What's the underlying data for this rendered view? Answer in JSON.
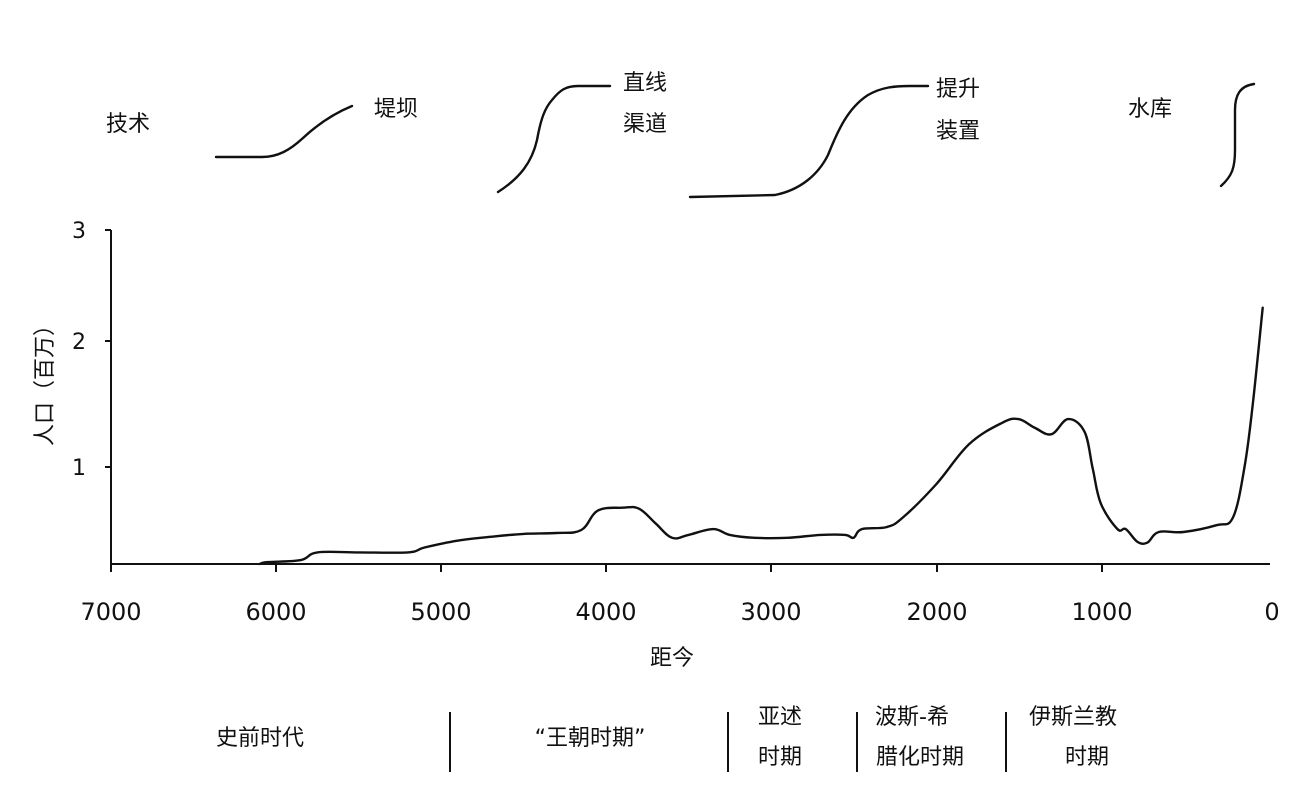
{
  "chart_data": {
    "type": "line",
    "xlabel": "距今",
    "ylabel": "人口（百万）",
    "xlim": [
      7000,
      0
    ],
    "ylim": [
      0,
      3
    ],
    "x_ticks": [
      "7000",
      "6000",
      "5000",
      "4000",
      "3000",
      "2000",
      "1000",
      "0"
    ],
    "y_ticks": [
      "1",
      "2",
      "3"
    ],
    "series": [
      {
        "x": [
          6100,
          6050,
          5850,
          5750,
          5500,
          5200,
          5100,
          4900,
          4700,
          4500,
          4300,
          4150,
          4050,
          3900,
          3800,
          3700,
          3600,
          3500,
          3350,
          3250,
          3100,
          2900,
          2700,
          2550,
          2500,
          2450,
          2300,
          2200,
          2000,
          1800,
          1600,
          1500,
          1400,
          1300,
          1200,
          1100,
          1050,
          1000,
          900,
          850,
          780,
          720,
          650,
          500,
          300,
          200,
          130,
          80,
          20
        ],
        "y": [
          0.0,
          0.02,
          0.04,
          0.12,
          0.12,
          0.12,
          0.17,
          0.24,
          0.28,
          0.31,
          0.32,
          0.35,
          0.55,
          0.58,
          0.57,
          0.42,
          0.27,
          0.3,
          0.36,
          0.3,
          0.27,
          0.27,
          0.3,
          0.3,
          0.27,
          0.36,
          0.38,
          0.48,
          0.82,
          1.18,
          1.35,
          1.38,
          1.31,
          1.26,
          1.38,
          1.28,
          0.98,
          0.62,
          0.36,
          0.36,
          0.23,
          0.22,
          0.33,
          0.33,
          0.4,
          0.48,
          1.0,
          1.5,
          2.3
        ]
      }
    ],
    "technology": {
      "row_label": "技术",
      "items": [
        {
          "label": "堤坝"
        },
        {
          "label": "直线渠道",
          "line1": "直线",
          "line2": "渠道"
        },
        {
          "label": "提升装置",
          "line1": "提升",
          "line2": "装置"
        },
        {
          "label": "水库"
        }
      ]
    },
    "periods": [
      {
        "label": "史前时代"
      },
      {
        "label": "“王朝时期”"
      },
      {
        "label": "亚述时期",
        "line1": "亚述",
        "line2": "时期"
      },
      {
        "label": "波斯-希腊化时期",
        "line1": "波斯-希",
        "line2": "腊化时期"
      },
      {
        "label": "伊斯兰教时期",
        "line1": "伊斯兰教",
        "line2": "时期"
      }
    ]
  }
}
